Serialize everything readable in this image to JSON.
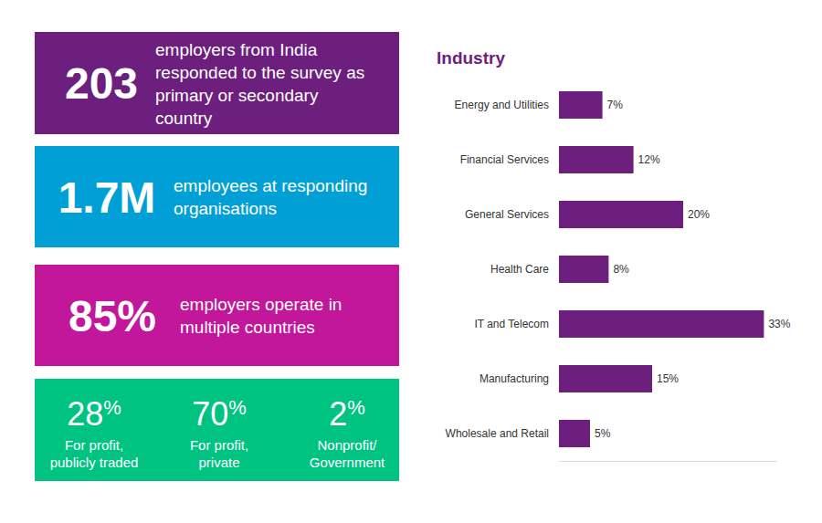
{
  "stats": [
    {
      "value": "203",
      "text": [
        "employers from India",
        "responded to the survey as",
        "primary or secondary",
        "country"
      ],
      "color": "#6d1f7e"
    },
    {
      "value": "1.7M",
      "text": [
        "employees at responding",
        "organisations"
      ],
      "color": "#00a0d6"
    },
    {
      "value": "85%",
      "text": [
        "employers operate in",
        "multiple countries"
      ],
      "color": "#c2169b"
    }
  ],
  "ownership": {
    "color": "#00c382",
    "items": [
      {
        "value": 28,
        "unit": "%",
        "label": [
          "For profit,",
          "publicly traded"
        ]
      },
      {
        "value": 70,
        "unit": "%",
        "label": [
          "For profit,",
          "private"
        ]
      },
      {
        "value": 2,
        "unit": "%",
        "label": [
          "Nonprofit/",
          "Government"
        ]
      }
    ]
  },
  "chart_data": {
    "type": "bar",
    "title": "Industry",
    "orientation": "horizontal",
    "categories": [
      "Energy and Utilities",
      "Financial Services",
      "General Services",
      "Health Care",
      "IT and Telecom",
      "Manufacturing",
      "Wholesale and Retail"
    ],
    "values": [
      7,
      12,
      20,
      8,
      33,
      15,
      5
    ],
    "value_labels": [
      "7%",
      "12%",
      "20%",
      "8%",
      "33%",
      "15%",
      "5%"
    ],
    "color": "#6d1f7e",
    "data_labels": true,
    "tick_labels": "y",
    "xlim": [
      0,
      35
    ],
    "xticks": []
  }
}
